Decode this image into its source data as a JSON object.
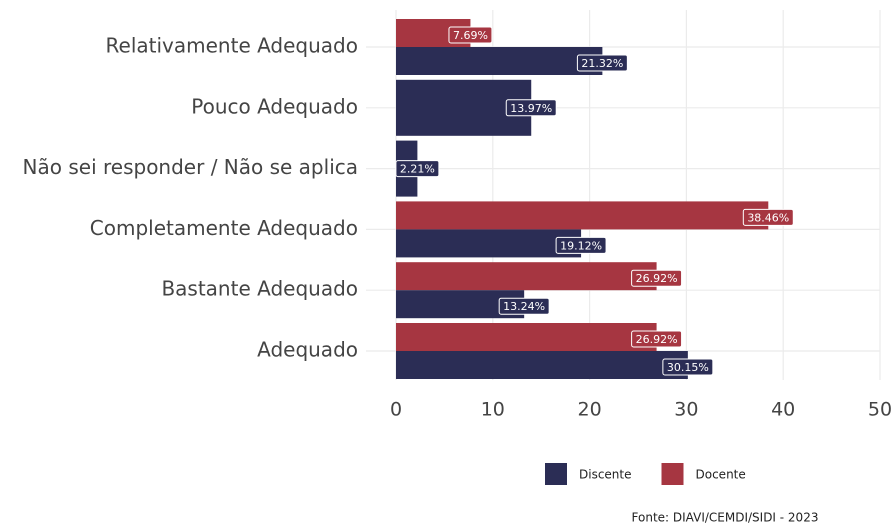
{
  "chart_data": {
    "type": "barh",
    "categories": [
      "Relativamente Adequado",
      "Pouco Adequado",
      "Não sei responder / Não se aplica",
      "Completamente Adequado",
      "Bastante Adequado",
      "Adequado"
    ],
    "series": [
      {
        "name": "Discente",
        "color": "#2b2d55",
        "values": [
          21.32,
          13.97,
          2.21,
          19.12,
          13.24,
          30.15
        ],
        "value_labels": [
          "21.32%",
          "13.97%",
          "2.21%",
          "19.12%",
          "13.24%",
          "30.15%"
        ]
      },
      {
        "name": "Docente",
        "color": "#a63641",
        "values": [
          7.69,
          null,
          null,
          38.46,
          26.92,
          26.92
        ],
        "value_labels": [
          "7.69%",
          null,
          null,
          "38.46%",
          "26.92%",
          "26.92%"
        ]
      }
    ],
    "xlim": [
      0,
      50
    ],
    "xticks": [
      0,
      10,
      20,
      30,
      40,
      50
    ],
    "grid": true,
    "legend": "bottom",
    "caption": "Fonte: DIAVI/CEMDI/SIDI - 2023"
  }
}
